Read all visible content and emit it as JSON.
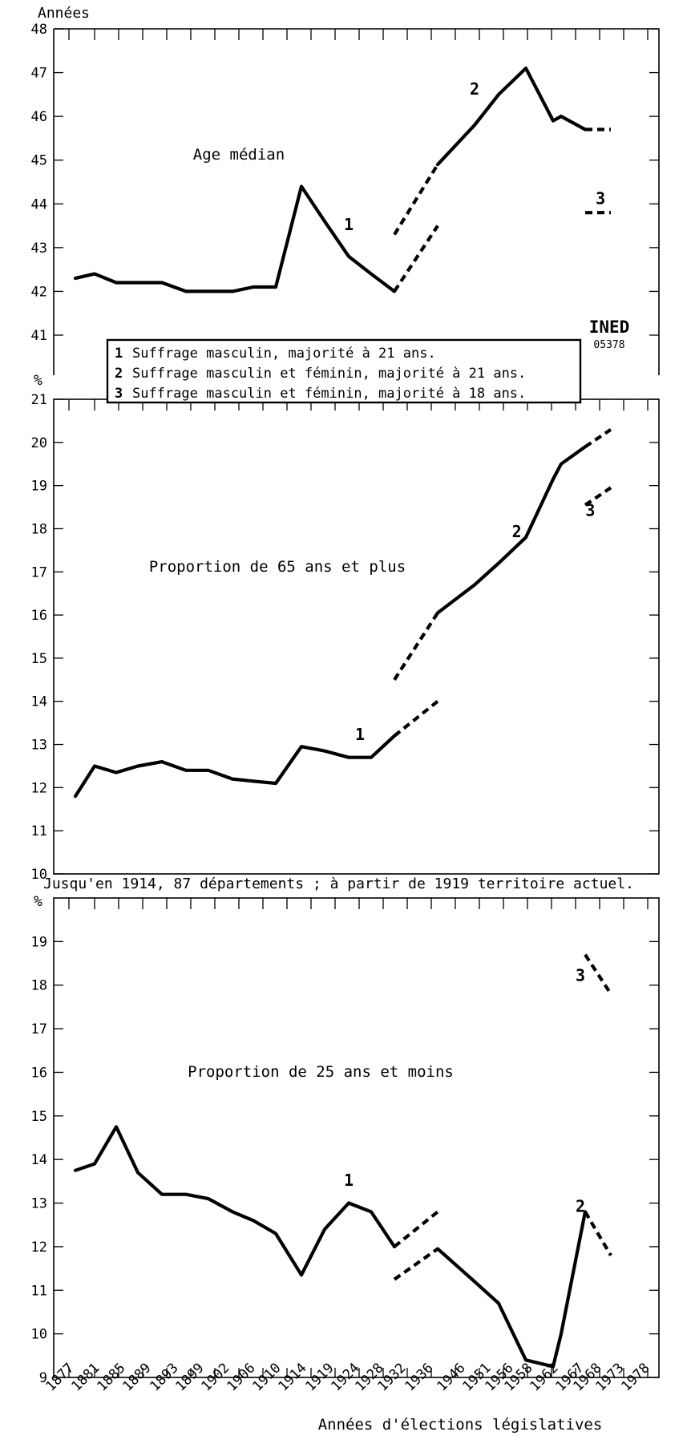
{
  "logo": {
    "line1": "INED",
    "line2": "05378"
  },
  "legend": [
    {
      "num": "1",
      "text": "Suffrage masculin, majorité à 21 ans."
    },
    {
      "num": "2",
      "text": "Suffrage masculin et féminin, majorité à 21 ans."
    },
    {
      "num": "3",
      "text": "Suffrage masculin et féminin, majorité à 18 ans."
    }
  ],
  "territory_note": "Jusqu'en 1914, 87 départements ; à partir de 1919 territoire actuel.",
  "x_title": "Années d'élections législatives",
  "x_ticks": [
    "1877",
    "1881",
    "1885",
    "1889",
    "1893",
    "1899",
    "1902",
    "1906",
    "1910",
    "1914",
    "1919",
    "1924",
    "1928",
    "1932",
    "1936",
    "1946",
    "1951",
    "1956",
    "1958",
    "1962",
    "1967",
    "1968",
    "1973",
    "1978"
  ],
  "chart_data": [
    {
      "type": "line",
      "title": "Age médian",
      "ylabel": "Années",
      "ylim": [
        41,
        48
      ],
      "yticks": [
        41,
        42,
        43,
        44,
        45,
        46,
        47,
        48
      ],
      "series": [
        {
          "name": "1",
          "style": "solid",
          "points": [
            [
              1877,
              42.3
            ],
            [
              1881,
              42.4
            ],
            [
              1885,
              42.2
            ],
            [
              1889,
              42.2
            ],
            [
              1893,
              42.2
            ],
            [
              1898,
              42.0
            ],
            [
              1902,
              42.0
            ],
            [
              1906,
              42.0
            ],
            [
              1910,
              42.1
            ],
            [
              1914,
              42.1
            ],
            [
              1919,
              44.4
            ],
            [
              1924,
              43.6
            ],
            [
              1928,
              42.8
            ],
            [
              1932,
              42.4
            ],
            [
              1936,
              42.0
            ]
          ]
        },
        {
          "name": "1",
          "style": "dashed",
          "points": [
            [
              1936,
              42.0
            ],
            [
              1945,
              43.5
            ]
          ]
        },
        {
          "name": "2",
          "style": "dashed",
          "points": [
            [
              1936,
              43.3
            ],
            [
              1945,
              44.9
            ]
          ]
        },
        {
          "name": "2",
          "style": "solid",
          "points": [
            [
              1945,
              44.9
            ],
            [
              1951,
              45.8
            ],
            [
              1956,
              46.5
            ],
            [
              1962,
              47.1
            ],
            [
              1967,
              45.9
            ],
            [
              1968,
              46.0
            ],
            [
              1973,
              45.7
            ]
          ]
        },
        {
          "name": "2",
          "style": "dashed",
          "points": [
            [
              1973,
              45.7
            ],
            [
              1978,
              45.7
            ]
          ]
        },
        {
          "name": "3",
          "style": "dashed",
          "points": [
            [
              1973,
              43.8
            ],
            [
              1978,
              43.8
            ]
          ]
        }
      ],
      "labels": [
        {
          "text": "1",
          "x": 1928,
          "y": 43.4
        },
        {
          "text": "2",
          "x": 1951,
          "y": 46.5
        },
        {
          "text": "3",
          "x": 1976,
          "y": 44.0
        }
      ]
    },
    {
      "type": "line",
      "title": "Proportion de 65 ans et plus",
      "ylabel": "%",
      "ylim": [
        10,
        21
      ],
      "yticks": [
        10,
        11,
        12,
        13,
        14,
        15,
        16,
        17,
        18,
        19,
        20,
        21
      ],
      "series": [
        {
          "name": "1",
          "style": "solid",
          "points": [
            [
              1877,
              11.8
            ],
            [
              1881,
              12.5
            ],
            [
              1885,
              12.35
            ],
            [
              1889,
              12.5
            ],
            [
              1893,
              12.6
            ],
            [
              1898,
              12.4
            ],
            [
              1902,
              12.4
            ],
            [
              1906,
              12.2
            ],
            [
              1910,
              12.15
            ],
            [
              1914,
              12.1
            ],
            [
              1919,
              12.95
            ],
            [
              1924,
              12.85
            ],
            [
              1928,
              12.7
            ],
            [
              1932,
              12.7
            ],
            [
              1936,
              13.2
            ]
          ]
        },
        {
          "name": "1",
          "style": "dashed",
          "points": [
            [
              1936,
              13.2
            ],
            [
              1945,
              14.0
            ]
          ]
        },
        {
          "name": "2",
          "style": "dashed",
          "points": [
            [
              1936,
              14.5
            ],
            [
              1945,
              16.05
            ]
          ]
        },
        {
          "name": "2",
          "style": "solid",
          "points": [
            [
              1945,
              16.05
            ],
            [
              1951,
              16.7
            ],
            [
              1956,
              17.2
            ],
            [
              1962,
              17.8
            ],
            [
              1967,
              19.15
            ],
            [
              1968,
              19.5
            ],
            [
              1973,
              19.9
            ]
          ]
        },
        {
          "name": "2",
          "style": "dashed",
          "points": [
            [
              1973,
              19.9
            ],
            [
              1978,
              20.3
            ]
          ]
        },
        {
          "name": "3",
          "style": "dashed",
          "points": [
            [
              1973,
              18.55
            ],
            [
              1978,
              18.95
            ]
          ]
        }
      ],
      "labels": [
        {
          "text": "1",
          "x": 1930,
          "y": 13.1
        },
        {
          "text": "2",
          "x": 1960,
          "y": 17.8
        },
        {
          "text": "3",
          "x": 1974,
          "y": 18.3
        }
      ]
    },
    {
      "type": "line",
      "title": "Proportion de 25 ans et moins",
      "ylabel": "%",
      "ylim": [
        9,
        20
      ],
      "yticks": [
        9,
        10,
        11,
        12,
        13,
        14,
        15,
        16,
        17,
        18,
        19
      ],
      "series": [
        {
          "name": "1",
          "style": "solid",
          "points": [
            [
              1877,
              13.75
            ],
            [
              1881,
              13.9
            ],
            [
              1885,
              14.75
            ],
            [
              1889,
              13.7
            ],
            [
              1893,
              13.2
            ],
            [
              1898,
              13.2
            ],
            [
              1902,
              13.1
            ],
            [
              1906,
              12.8
            ],
            [
              1910,
              12.6
            ],
            [
              1914,
              12.3
            ],
            [
              1919,
              11.35
            ],
            [
              1924,
              12.4
            ],
            [
              1928,
              13.0
            ],
            [
              1932,
              12.8
            ],
            [
              1936,
              12.0
            ]
          ]
        },
        {
          "name": "1",
          "style": "dashed",
          "points": [
            [
              1936,
              12.0
            ],
            [
              1945,
              12.8
            ]
          ]
        },
        {
          "name": "2",
          "style": "dashed",
          "points": [
            [
              1936,
              11.25
            ],
            [
              1945,
              11.95
            ]
          ]
        },
        {
          "name": "2",
          "style": "solid",
          "points": [
            [
              1945,
              11.95
            ],
            [
              1951,
              11.2
            ],
            [
              1956,
              10.7
            ],
            [
              1962,
              9.4
            ],
            [
              1967,
              9.25
            ],
            [
              1968,
              10.0
            ],
            [
              1973,
              12.8
            ]
          ]
        },
        {
          "name": "2",
          "style": "dashed",
          "points": [
            [
              1973,
              12.8
            ],
            [
              1978,
              11.8
            ]
          ]
        },
        {
          "name": "3",
          "style": "dashed",
          "points": [
            [
              1973,
              18.7
            ],
            [
              1978,
              17.8
            ]
          ]
        }
      ],
      "labels": [
        {
          "text": "1",
          "x": 1928,
          "y": 13.4
        },
        {
          "text": "2",
          "x": 1972,
          "y": 12.8
        },
        {
          "text": "3",
          "x": 1972,
          "y": 18.1
        }
      ]
    }
  ]
}
